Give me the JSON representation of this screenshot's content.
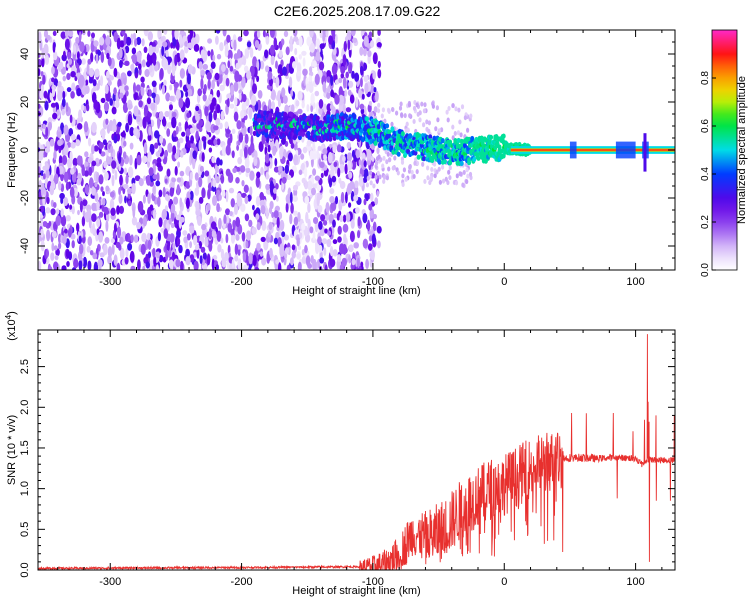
{
  "title": "C2E6.2025.208.17.09.G22",
  "chart_data": [
    {
      "type": "heatmap",
      "xlabel": "Height of straight line (km)",
      "ylabel": "Frequency (Hz)",
      "xlim": [
        -355,
        130
      ],
      "ylim": [
        -50,
        50
      ],
      "xticks": [
        -300,
        -200,
        -100,
        0,
        100
      ],
      "yticks": [
        -40,
        -20,
        0,
        20,
        40
      ],
      "colorbar": {
        "label": "Normalized spectral amplitude",
        "range": [
          0.0,
          1.0
        ],
        "ticks": [
          0.0,
          0.2,
          0.4,
          0.6,
          0.8
        ],
        "tick_labels": [
          "0.0",
          "0.2",
          "0.4",
          "0.6",
          "0.8"
        ]
      },
      "description_of_signal": {
        "noise_region_x": [
          -355,
          -105
        ],
        "track": [
          {
            "x": -185,
            "y": 11,
            "amp": 0.35
          },
          {
            "x": -160,
            "y": 10,
            "amp": 0.35
          },
          {
            "x": -140,
            "y": 9,
            "amp": 0.4
          },
          {
            "x": -120,
            "y": 10,
            "amp": 0.45
          },
          {
            "x": -100,
            "y": 8,
            "amp": 0.5
          },
          {
            "x": -80,
            "y": 3,
            "amp": 0.55
          },
          {
            "x": -60,
            "y": 1,
            "amp": 0.55
          },
          {
            "x": -40,
            "y": -1,
            "amp": 0.6
          },
          {
            "x": -20,
            "y": 0,
            "amp": 0.7
          },
          {
            "x": 0,
            "y": 1,
            "amp": 0.8
          },
          {
            "x": 20,
            "y": 0,
            "amp": 0.85
          },
          {
            "x": 60,
            "y": 0,
            "amp": 0.9
          },
          {
            "x": 100,
            "y": 0,
            "amp": 0.9
          },
          {
            "x": 130,
            "y": 0,
            "amp": 0.9
          }
        ]
      }
    },
    {
      "type": "line",
      "xlabel": "Height of straight line (km)",
      "ylabel": "SNR (10 * v/v)",
      "yscale_label": "(x10",
      "yscale_exp": "4",
      "xlim": [
        -355,
        130
      ],
      "ylim": [
        0,
        2.95
      ],
      "xticks": [
        -300,
        -200,
        -100,
        0,
        100
      ],
      "yticks": [
        0.0,
        0.5,
        1.0,
        1.5,
        2.0,
        2.5
      ],
      "ytick_labels": [
        "0.0",
        "0.5",
        "1.0",
        "1.5",
        "2.0",
        "2.5"
      ],
      "series": [
        {
          "color": "#e8302e",
          "envelope_x": [
            -355,
            -200,
            -110,
            -100,
            -90,
            -80,
            -70,
            -60,
            -50,
            -40,
            -30,
            -20,
            -10,
            0,
            10,
            20,
            30,
            40,
            50,
            60,
            70,
            80,
            90,
            100,
            105,
            108,
            110,
            115,
            130
          ],
          "envelope_y": [
            0.02,
            0.03,
            0.04,
            0.05,
            0.08,
            0.2,
            0.45,
            0.4,
            0.45,
            0.6,
            0.8,
            0.9,
            1.0,
            1.05,
            1.15,
            1.25,
            1.32,
            1.36,
            1.38,
            1.38,
            1.37,
            1.38,
            1.38,
            1.37,
            1.3,
            1.35,
            1.36,
            1.35,
            1.35
          ]
        }
      ]
    }
  ]
}
